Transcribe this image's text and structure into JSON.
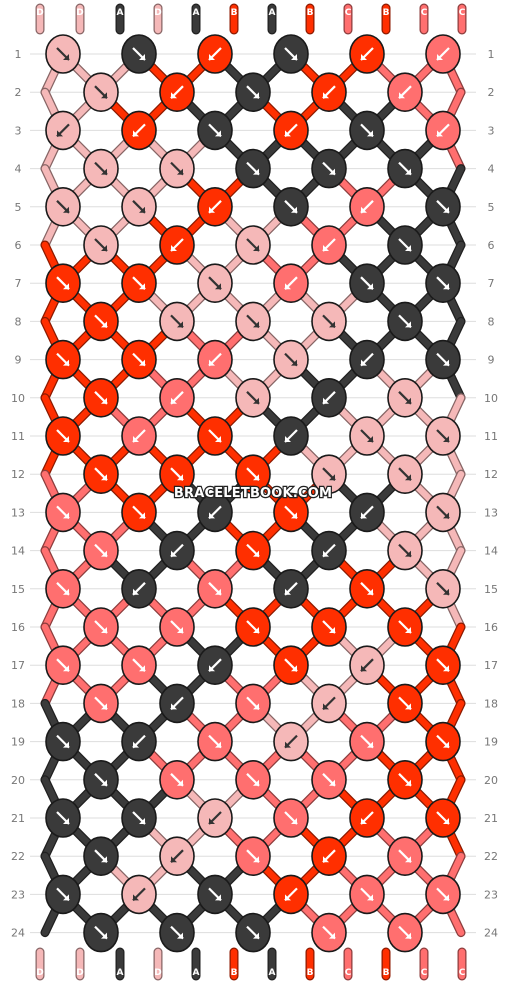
{
  "watermark": "BRACELETBOOK.COM",
  "colors": {
    "A": "#3a3a3a",
    "B": "#ff2f00",
    "C": "#ff6f6f",
    "D": "#f5b8b8"
  },
  "top_strands": [
    "D",
    "D",
    "A",
    "D",
    "A",
    "B",
    "A",
    "B",
    "C",
    "B",
    "C",
    "C"
  ],
  "bottom_strands": [
    "D",
    "D",
    "A",
    "D",
    "A",
    "B",
    "A",
    "B",
    "C",
    "B",
    "C",
    "C"
  ],
  "rows": [
    [
      [
        "D",
        "r"
      ],
      [
        "A",
        "r"
      ],
      [
        "B",
        "l"
      ],
      [
        "A",
        "r"
      ],
      [
        "B",
        "l"
      ],
      [
        "C",
        "l"
      ]
    ],
    [
      [
        "D",
        "r"
      ],
      [
        "B",
        "l"
      ],
      [
        "A",
        "r"
      ],
      [
        "B",
        "l"
      ],
      [
        "C",
        "l"
      ]
    ],
    [
      [
        "D",
        "l"
      ],
      [
        "B",
        "l"
      ],
      [
        "A",
        "r"
      ],
      [
        "B",
        "l"
      ],
      [
        "A",
        "r"
      ],
      [
        "C",
        "l"
      ]
    ],
    [
      [
        "D",
        "r"
      ],
      [
        "D",
        "r"
      ],
      [
        "A",
        "r"
      ],
      [
        "A",
        "r"
      ],
      [
        "A",
        "r"
      ]
    ],
    [
      [
        "D",
        "r"
      ],
      [
        "D",
        "r"
      ],
      [
        "B",
        "l"
      ],
      [
        "A",
        "r"
      ],
      [
        "C",
        "l"
      ],
      [
        "A",
        "r"
      ]
    ],
    [
      [
        "D",
        "r"
      ],
      [
        "B",
        "l"
      ],
      [
        "D",
        "r"
      ],
      [
        "C",
        "l"
      ],
      [
        "A",
        "r"
      ]
    ],
    [
      [
        "B",
        "r"
      ],
      [
        "B",
        "r"
      ],
      [
        "D",
        "r"
      ],
      [
        "C",
        "l"
      ],
      [
        "A",
        "r"
      ],
      [
        "A",
        "r"
      ]
    ],
    [
      [
        "B",
        "r"
      ],
      [
        "D",
        "r"
      ],
      [
        "D",
        "r"
      ],
      [
        "D",
        "r"
      ],
      [
        "A",
        "r"
      ]
    ],
    [
      [
        "B",
        "r"
      ],
      [
        "B",
        "r"
      ],
      [
        "C",
        "l"
      ],
      [
        "D",
        "r"
      ],
      [
        "A",
        "l"
      ],
      [
        "A",
        "r"
      ]
    ],
    [
      [
        "B",
        "r"
      ],
      [
        "C",
        "l"
      ],
      [
        "D",
        "r"
      ],
      [
        "A",
        "l"
      ],
      [
        "D",
        "r"
      ]
    ],
    [
      [
        "B",
        "r"
      ],
      [
        "C",
        "l"
      ],
      [
        "B",
        "r"
      ],
      [
        "A",
        "l"
      ],
      [
        "D",
        "r"
      ],
      [
        "D",
        "r"
      ]
    ],
    [
      [
        "B",
        "r"
      ],
      [
        "B",
        "r"
      ],
      [
        "B",
        "r"
      ],
      [
        "D",
        "r"
      ],
      [
        "D",
        "r"
      ]
    ],
    [
      [
        "C",
        "r"
      ],
      [
        "B",
        "r"
      ],
      [
        "A",
        "l"
      ],
      [
        "B",
        "r"
      ],
      [
        "A",
        "l"
      ],
      [
        "D",
        "r"
      ]
    ],
    [
      [
        "C",
        "r"
      ],
      [
        "A",
        "l"
      ],
      [
        "B",
        "r"
      ],
      [
        "A",
        "l"
      ],
      [
        "D",
        "r"
      ]
    ],
    [
      [
        "C",
        "r"
      ],
      [
        "A",
        "l"
      ],
      [
        "C",
        "r"
      ],
      [
        "A",
        "l"
      ],
      [
        "B",
        "r"
      ],
      [
        "D",
        "r"
      ]
    ],
    [
      [
        "C",
        "r"
      ],
      [
        "C",
        "r"
      ],
      [
        "B",
        "r"
      ],
      [
        "B",
        "r"
      ],
      [
        "B",
        "r"
      ]
    ],
    [
      [
        "C",
        "r"
      ],
      [
        "C",
        "r"
      ],
      [
        "A",
        "l"
      ],
      [
        "B",
        "r"
      ],
      [
        "D",
        "l"
      ],
      [
        "B",
        "r"
      ]
    ],
    [
      [
        "C",
        "r"
      ],
      [
        "A",
        "l"
      ],
      [
        "C",
        "r"
      ],
      [
        "D",
        "l"
      ],
      [
        "B",
        "r"
      ]
    ],
    [
      [
        "A",
        "r"
      ],
      [
        "A",
        "l"
      ],
      [
        "C",
        "r"
      ],
      [
        "D",
        "l"
      ],
      [
        "C",
        "r"
      ],
      [
        "B",
        "r"
      ]
    ],
    [
      [
        "A",
        "r"
      ],
      [
        "C",
        "r"
      ],
      [
        "C",
        "r"
      ],
      [
        "C",
        "r"
      ],
      [
        "B",
        "r"
      ]
    ],
    [
      [
        "A",
        "r"
      ],
      [
        "A",
        "r"
      ],
      [
        "D",
        "l"
      ],
      [
        "C",
        "r"
      ],
      [
        "B",
        "l"
      ],
      [
        "B",
        "r"
      ]
    ],
    [
      [
        "A",
        "r"
      ],
      [
        "D",
        "l"
      ],
      [
        "C",
        "r"
      ],
      [
        "B",
        "l"
      ],
      [
        "C",
        "r"
      ]
    ],
    [
      [
        "A",
        "r"
      ],
      [
        "D",
        "l"
      ],
      [
        "A",
        "r"
      ],
      [
        "B",
        "l"
      ],
      [
        "C",
        "r"
      ],
      [
        "C",
        "r"
      ]
    ],
    [
      [
        "A",
        "r"
      ],
      [
        "A",
        "r"
      ],
      [
        "A",
        "r"
      ],
      [
        "C",
        "r"
      ],
      [
        "C",
        "r"
      ]
    ]
  ]
}
